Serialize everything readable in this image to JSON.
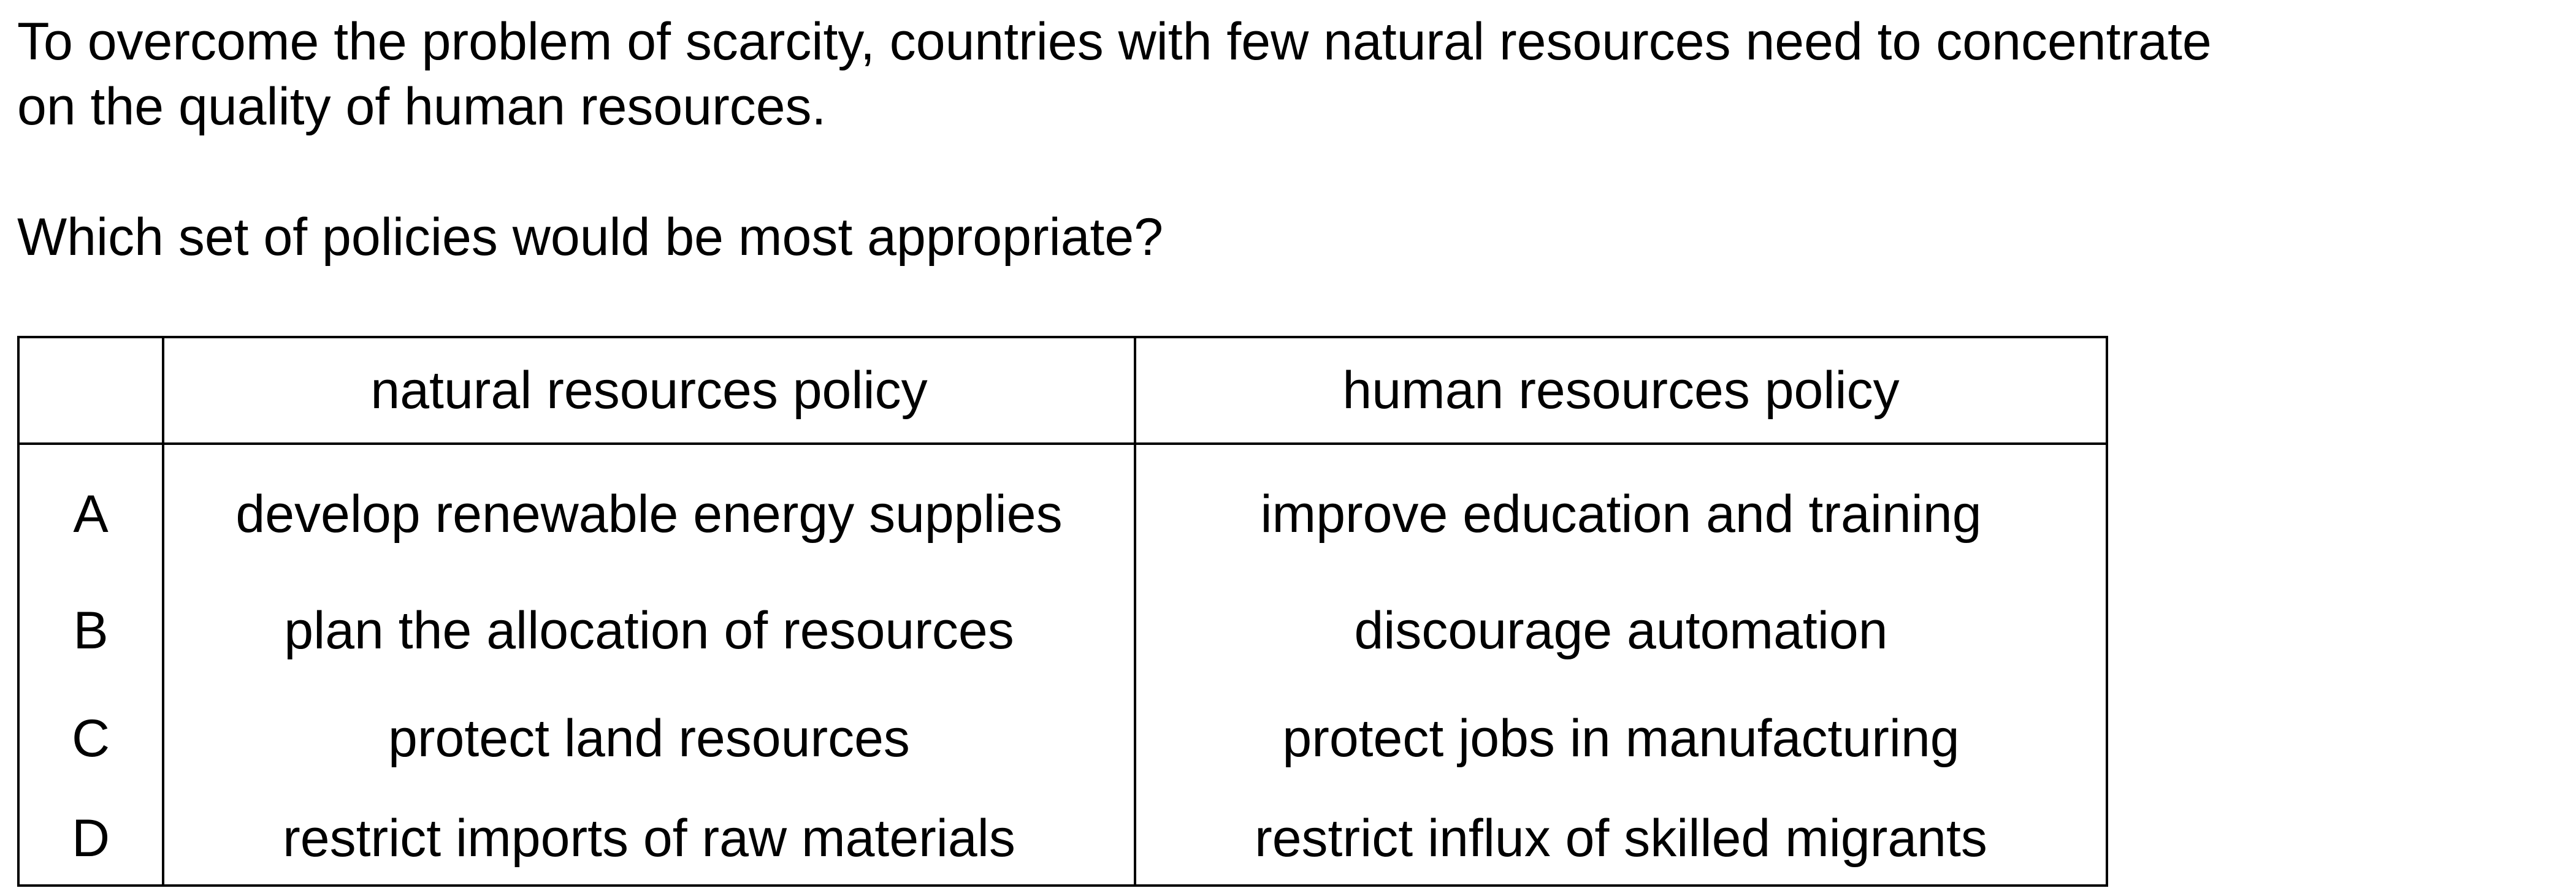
{
  "question": {
    "intro_line1": "To overcome the problem of scarcity, countries with few natural resources need to concentrate",
    "intro_line2": "on the quality of human resources.",
    "prompt": "Which set of policies would be most appropriate?"
  },
  "table": {
    "headers": [
      "",
      "natural resources policy",
      "human resources policy"
    ],
    "rows": [
      {
        "letter": "A",
        "natural": "develop renewable energy supplies",
        "human": "improve education and training"
      },
      {
        "letter": "B",
        "natural": "plan the allocation of resources",
        "human": "discourage automation"
      },
      {
        "letter": "C",
        "natural": "protect land resources",
        "human": "protect jobs in manufacturing"
      },
      {
        "letter": "D",
        "natural": "restrict imports of raw materials",
        "human": "restrict influx of skilled migrants"
      }
    ]
  }
}
